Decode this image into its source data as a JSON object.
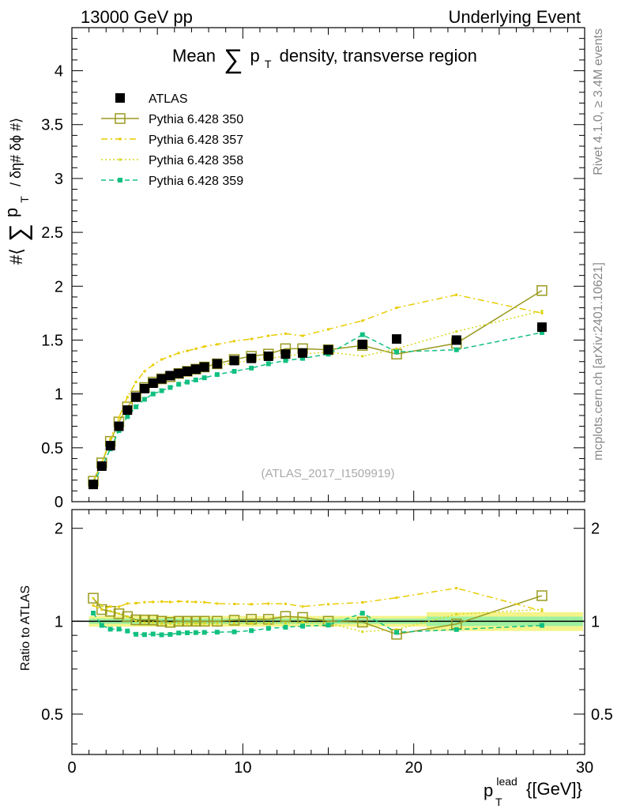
{
  "header": {
    "left": "13000 GeV pp",
    "right": "Underlying Event"
  },
  "side": {
    "rivet": "Rivet 4.1.0, ≥ 3.4M events",
    "mcplots": "mcplots.cern.ch [arXiv:2401.10621]"
  },
  "chart_data": {
    "type": "scatter",
    "title_prefix": "Mean",
    "title_suffix": "density, transverse region",
    "title_symbol": "∑",
    "title_var": "p",
    "title_sub": "T",
    "watermark": "(ATLAS_2017_I1509919)",
    "ylabel": "#⟨ ∑ p_T / δη# δϕ #⟩",
    "ylabel_parts": {
      "open": "#⟨",
      "sum": "∑",
      "p": "p",
      "sub": "T",
      "rest": "/ δη# δϕ #⟩"
    },
    "ratio_ylabel": "Ratio to ATLAS",
    "xlabel": {
      "p": "p",
      "sup": "lead",
      "sub": "T",
      "unit": "{[GeV]}"
    },
    "xlim": [
      0,
      30
    ],
    "ylim": [
      0,
      4.4
    ],
    "ratio_ylim": [
      0.37,
      2.3
    ],
    "x_ticks": [
      0,
      10,
      20,
      30
    ],
    "y_ticks": [
      0,
      0.5,
      1,
      1.5,
      2,
      2.5,
      3,
      3.5,
      4
    ],
    "y_tick_labels": [
      "0",
      "0.5",
      "1",
      "1.5",
      "2",
      "2.5",
      "3",
      "3.5",
      "4"
    ],
    "ratio_ticks": [
      0.5,
      1,
      2
    ],
    "ratio_tick_labels": [
      "0.5",
      "1",
      "2"
    ],
    "x": [
      1.25,
      1.75,
      2.25,
      2.75,
      3.25,
      3.75,
      4.25,
      4.75,
      5.25,
      5.75,
      6.25,
      6.75,
      7.25,
      7.75,
      8.5,
      9.5,
      10.5,
      11.5,
      12.5,
      13.5,
      15,
      17,
      19,
      22.5,
      27.5
    ],
    "series": [
      {
        "name": "ATLAS",
        "style": "data",
        "color": "#000000",
        "values": [
          0.16,
          0.33,
          0.52,
          0.7,
          0.85,
          0.97,
          1.05,
          1.1,
          1.14,
          1.17,
          1.19,
          1.21,
          1.23,
          1.25,
          1.28,
          1.31,
          1.33,
          1.35,
          1.37,
          1.38,
          1.41,
          1.46,
          1.51,
          1.5,
          1.62
        ]
      },
      {
        "name": "Pythia 6.428 350",
        "style": "open-square-solid",
        "color": "#9a9a20",
        "values": [
          0.19,
          0.36,
          0.56,
          0.74,
          0.88,
          0.98,
          1.06,
          1.11,
          1.14,
          1.16,
          1.19,
          1.21,
          1.23,
          1.25,
          1.28,
          1.32,
          1.35,
          1.37,
          1.42,
          1.42,
          1.41,
          1.45,
          1.37,
          1.47,
          1.96
        ]
      },
      {
        "name": "Pythia 6.428 357",
        "style": "dashdot-small-square",
        "color": "#e8cc00",
        "values": [
          0.18,
          0.36,
          0.58,
          0.78,
          0.97,
          1.11,
          1.21,
          1.27,
          1.32,
          1.35,
          1.38,
          1.4,
          1.42,
          1.44,
          1.46,
          1.49,
          1.51,
          1.54,
          1.56,
          1.54,
          1.6,
          1.68,
          1.8,
          1.92,
          1.75
        ]
      },
      {
        "name": "Pythia 6.428 358",
        "style": "dotted-small-square",
        "color": "#d8d820",
        "values": [
          0.19,
          0.37,
          0.56,
          0.74,
          0.88,
          0.97,
          1.04,
          1.09,
          1.12,
          1.15,
          1.17,
          1.19,
          1.21,
          1.23,
          1.26,
          1.29,
          1.31,
          1.33,
          1.35,
          1.37,
          1.39,
          1.35,
          1.42,
          1.58,
          1.77
        ]
      },
      {
        "name": "Pythia 6.428 359",
        "style": "dashed-filled-square",
        "color": "#10c080",
        "values": [
          0.17,
          0.32,
          0.49,
          0.66,
          0.79,
          0.88,
          0.95,
          1.0,
          1.03,
          1.06,
          1.09,
          1.11,
          1.13,
          1.15,
          1.18,
          1.21,
          1.24,
          1.28,
          1.31,
          1.33,
          1.37,
          1.55,
          1.39,
          1.41,
          1.57
        ]
      }
    ]
  }
}
